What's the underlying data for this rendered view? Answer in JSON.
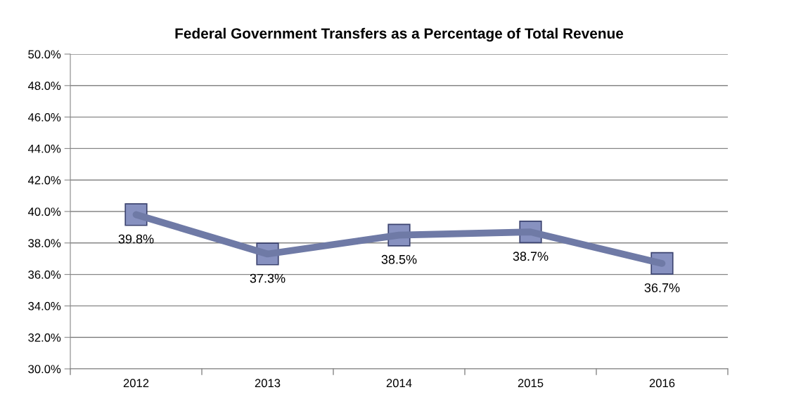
{
  "chart_data": {
    "type": "line",
    "title": "Federal Government Transfers as a Percentage of Total Revenue",
    "categories": [
      "2012",
      "2013",
      "2014",
      "2015",
      "2016"
    ],
    "series": [
      {
        "color": "#6f7aa6",
        "values": [
          39.8,
          37.3,
          38.5,
          38.7,
          36.7
        ],
        "value_labels": [
          "39.8%",
          "37.3%",
          "38.5%",
          "38.7%",
          "36.7%"
        ]
      }
    ],
    "ylim": [
      30,
      50
    ],
    "yticks": [
      {
        "value": 30,
        "label": "30.0%"
      },
      {
        "value": 32,
        "label": "32.0%"
      },
      {
        "value": 34,
        "label": "34.0%"
      },
      {
        "value": 36,
        "label": "36.0%"
      },
      {
        "value": 38,
        "label": "38.0%"
      },
      {
        "value": 40,
        "label": "40.0%"
      },
      {
        "value": 42,
        "label": "42.0%"
      },
      {
        "value": 44,
        "label": "44.0%"
      },
      {
        "value": 46,
        "label": "46.0%"
      },
      {
        "value": 48,
        "label": "48.0%"
      },
      {
        "value": 50,
        "label": "50.0%"
      }
    ],
    "grid": "y",
    "marker": "square",
    "line_style": "solid",
    "legend": false
  }
}
